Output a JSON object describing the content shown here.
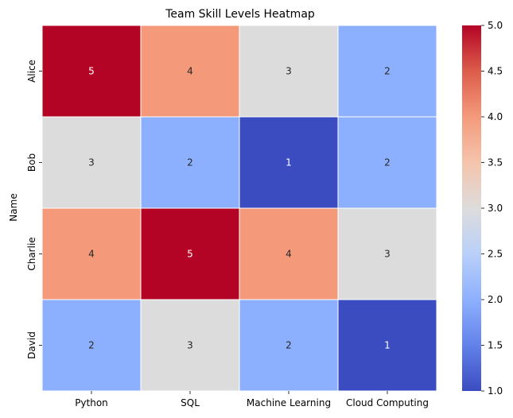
{
  "chart_data": {
    "type": "heatmap",
    "title": "Team Skill Levels Heatmap",
    "xlabel": "",
    "ylabel": "Name",
    "x_categories": [
      "Python",
      "SQL",
      "Machine Learning",
      "Cloud Computing"
    ],
    "y_categories": [
      "Alice",
      "Bob",
      "Charlie",
      "David"
    ],
    "values": [
      [
        5,
        4,
        3,
        2
      ],
      [
        3,
        2,
        1,
        2
      ],
      [
        4,
        5,
        4,
        3
      ],
      [
        2,
        3,
        2,
        1
      ]
    ],
    "annotated": true,
    "colormap": "coolwarm",
    "vmin": 1.0,
    "vmax": 5.0,
    "colorbar_ticks": [
      "1.0",
      "1.5",
      "2.0",
      "2.5",
      "3.0",
      "3.5",
      "4.0",
      "4.5",
      "5.0"
    ],
    "colors": {
      "1": "#3b4cc0",
      "2": "#8db0fe",
      "3": "#dddcdc",
      "4": "#f49a7b",
      "5": "#b40426"
    },
    "grid": false,
    "legend": "colorbar-right"
  }
}
